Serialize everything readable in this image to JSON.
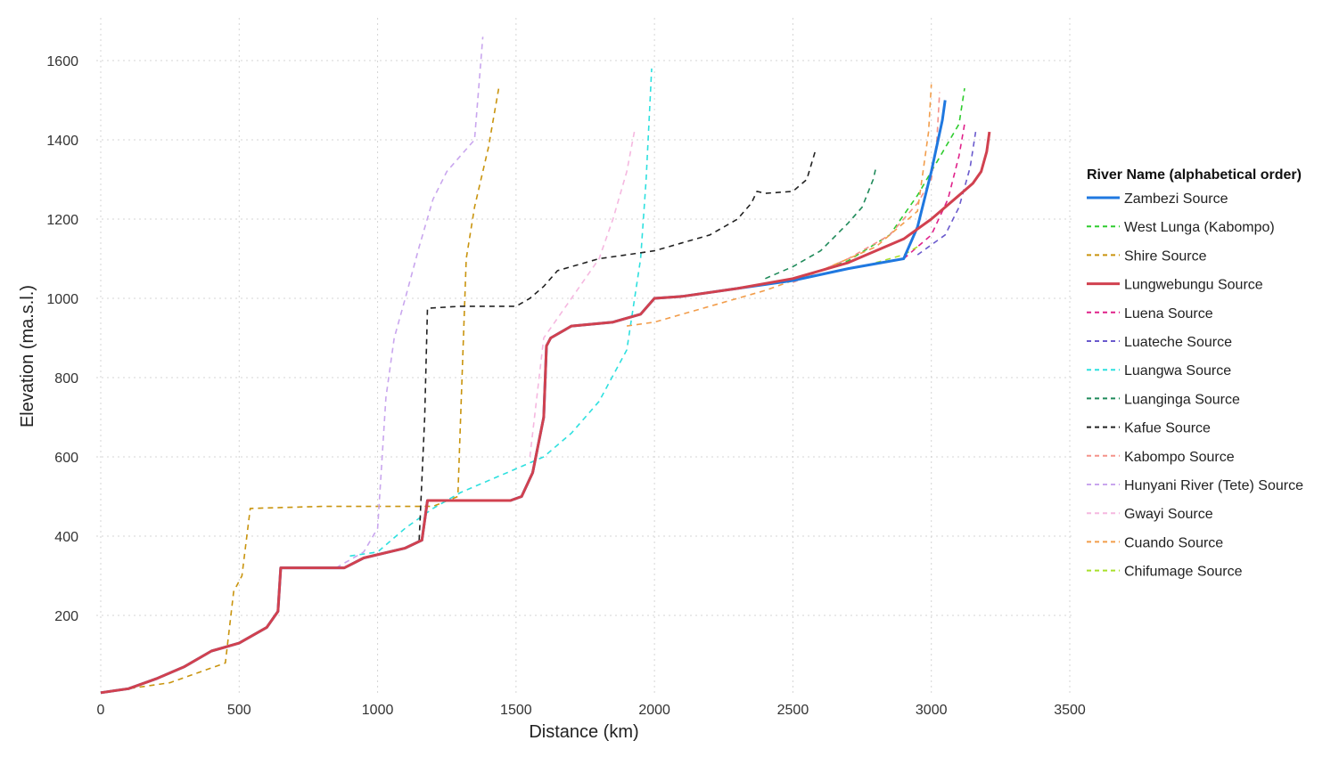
{
  "chart_data": {
    "type": "line",
    "title": "",
    "xlabel": "Distance (km)",
    "ylabel": "Elevation (ma.s.l.)",
    "xlim": [
      0,
      3500
    ],
    "ylim": [
      0,
      1660
    ],
    "x_ticks": [
      "0",
      "500",
      "1000",
      "1500",
      "2000",
      "2500",
      "3000",
      "3500"
    ],
    "y_ticks": [
      "200",
      "400",
      "600",
      "800",
      "1000",
      "1200",
      "1400",
      "1600"
    ],
    "grid": true,
    "legend": {
      "title": "River Name (alphabetical order)",
      "placement": "right"
    },
    "series": [
      {
        "name": "Zambezi Source",
        "color": "#1f78e0",
        "style": "solid",
        "x": [
          0,
          100,
          200,
          300,
          400,
          500,
          600,
          640,
          650,
          880,
          950,
          1100,
          1160,
          1180,
          1480,
          1520,
          1560,
          1600,
          1610,
          1625,
          1700,
          1850,
          1950,
          2000,
          2100,
          2300,
          2500,
          2700,
          2900,
          2950,
          3000,
          3040,
          3050
        ],
        "y": [
          5,
          15,
          40,
          70,
          110,
          130,
          170,
          210,
          320,
          320,
          345,
          370,
          390,
          490,
          490,
          500,
          560,
          700,
          880,
          900,
          930,
          940,
          960,
          1000,
          1005,
          1025,
          1045,
          1075,
          1100,
          1180,
          1320,
          1450,
          1500
        ]
      },
      {
        "name": "West Lunga (Kabompo)",
        "color": "#2ecc2e",
        "style": "dashed",
        "x": [
          2350,
          2500,
          2700,
          2850,
          2950,
          3050,
          3100,
          3120
        ],
        "y": [
          1030,
          1045,
          1095,
          1160,
          1260,
          1380,
          1440,
          1530
        ]
      },
      {
        "name": "Shire Source",
        "color": "#c9940e",
        "style": "dashed",
        "x": [
          0,
          100,
          250,
          450,
          480,
          510,
          540,
          800,
          1200,
          1290,
          1300,
          1320,
          1350,
          1400,
          1440
        ],
        "y": [
          5,
          15,
          30,
          80,
          260,
          300,
          470,
          475,
          475,
          500,
          700,
          1100,
          1230,
          1380,
          1540
        ]
      },
      {
        "name": "Lungwebungu Source",
        "color": "#d1414f",
        "style": "solid",
        "x": [
          0,
          100,
          200,
          300,
          400,
          500,
          600,
          640,
          650,
          880,
          950,
          1100,
          1160,
          1180,
          1480,
          1520,
          1560,
          1600,
          1610,
          1625,
          1700,
          1850,
          1950,
          2000,
          2100,
          2300,
          2500,
          2700,
          2900,
          3000,
          3100,
          3150,
          3180,
          3200,
          3210
        ],
        "y": [
          5,
          15,
          40,
          70,
          110,
          130,
          170,
          210,
          320,
          320,
          345,
          370,
          390,
          490,
          490,
          500,
          560,
          700,
          880,
          900,
          930,
          940,
          960,
          1000,
          1005,
          1025,
          1050,
          1090,
          1150,
          1200,
          1260,
          1290,
          1320,
          1370,
          1420
        ]
      },
      {
        "name": "Luena Source",
        "color": "#e0218a",
        "style": "dashed",
        "x": [
          2900,
          3000,
          3060,
          3100,
          3120
        ],
        "y": [
          1100,
          1160,
          1250,
          1360,
          1440
        ]
      },
      {
        "name": "Luateche Source",
        "color": "#6a5acd",
        "style": "dashed",
        "x": [
          2950,
          3050,
          3100,
          3140,
          3160
        ],
        "y": [
          1110,
          1160,
          1230,
          1330,
          1420
        ]
      },
      {
        "name": "Luangwa Source",
        "color": "#2ee0df",
        "style": "dashed",
        "x": [
          900,
          1000,
          1100,
          1200,
          1300,
          1400,
          1500,
          1600,
          1700,
          1800,
          1900,
          1950,
          1970,
          1990
        ],
        "y": [
          350,
          360,
          420,
          470,
          510,
          540,
          570,
          600,
          660,
          740,
          870,
          1100,
          1300,
          1580
        ]
      },
      {
        "name": "Luanginga Source",
        "color": "#1f8a5a",
        "style": "dashed",
        "x": [
          2400,
          2500,
          2600,
          2700,
          2750,
          2790,
          2800
        ],
        "y": [
          1050,
          1080,
          1120,
          1190,
          1230,
          1300,
          1330
        ]
      },
      {
        "name": "Kafue Source",
        "color": "#222222",
        "style": "dashed",
        "x": [
          1150,
          1170,
          1180,
          1300,
          1500,
          1550,
          1600,
          1650,
          1700,
          1800,
          1900,
          2000,
          2100,
          2200,
          2300,
          2350,
          2370,
          2400,
          2500,
          2550,
          2580
        ],
        "y": [
          390,
          700,
          975,
          980,
          980,
          1000,
          1030,
          1070,
          1080,
          1100,
          1110,
          1120,
          1140,
          1160,
          1200,
          1240,
          1270,
          1265,
          1270,
          1300,
          1370
        ]
      },
      {
        "name": "Kabompo Source",
        "color": "#f4928a",
        "style": "dashed",
        "x": [
          2500,
          2700,
          2850,
          2950,
          3000,
          3020,
          3030
        ],
        "y": [
          1040,
          1100,
          1160,
          1240,
          1300,
          1400,
          1520
        ]
      },
      {
        "name": "Hunyani River (Tete) Source",
        "color": "#c9a6ee",
        "style": "dashed",
        "x": [
          850,
          950,
          1000,
          1030,
          1060,
          1100,
          1150,
          1200,
          1250,
          1300,
          1350,
          1380
        ],
        "y": [
          320,
          360,
          420,
          750,
          900,
          1000,
          1130,
          1250,
          1320,
          1360,
          1400,
          1660
        ]
      },
      {
        "name": "Gwayi Source",
        "color": "#f5b8e0",
        "style": "dashed",
        "x": [
          1550,
          1600,
          1700,
          1800,
          1850,
          1900,
          1930
        ],
        "y": [
          600,
          900,
          1000,
          1100,
          1200,
          1320,
          1430
        ]
      },
      {
        "name": "Cuando Source",
        "color": "#f29d4b",
        "style": "dashed",
        "x": [
          1900,
          2000,
          2200,
          2400,
          2600,
          2800,
          2950,
          2990,
          3000
        ],
        "y": [
          930,
          940,
          980,
          1020,
          1070,
          1130,
          1220,
          1420,
          1540
        ]
      },
      {
        "name": "Chifumage Source",
        "color": "#a8e02a",
        "style": "dashed",
        "x": [
          2800,
          2900,
          2950
        ],
        "y": [
          1090,
          1110,
          1130
        ]
      }
    ]
  }
}
